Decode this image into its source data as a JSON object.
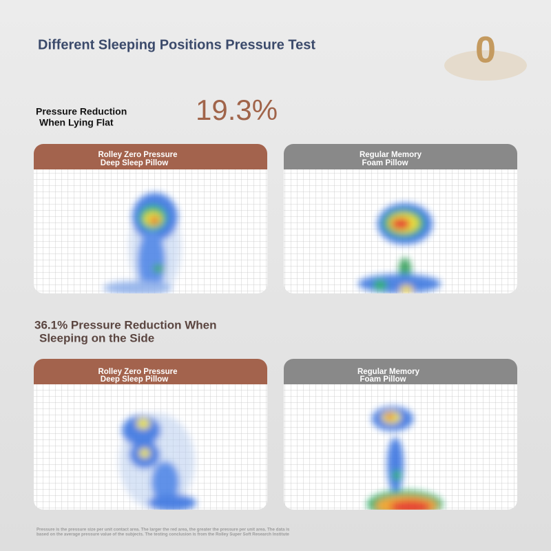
{
  "title": "Different Sleeping Positions Pressure Test",
  "logo": "0",
  "flat": {
    "label_lines": [
      "Pressure Reduction",
      "When Lying Flat"
    ],
    "value": "19.3%",
    "panels": [
      {
        "header_lines": [
          "Rolley Zero Pressure",
          "Deep Sleep Pillow"
        ]
      },
      {
        "header_lines": [
          "Regular Memory",
          "Foam Pillow"
        ]
      }
    ]
  },
  "side": {
    "heading_lines": [
      "36.1% Pressure Reduction When",
      "Sleeping on the Side"
    ],
    "panels": [
      {
        "header_lines": [
          "Rolley Zero Pressure",
          "Deep Sleep Pillow"
        ]
      },
      {
        "header_lines": [
          "Regular Memory",
          "Foam Pillow"
        ]
      }
    ]
  },
  "footnote_lines": [
    "Pressure is the pressure size per unit contact area. The larger the red area, the greater the pressure per unit area. The data is",
    "based on the average pressure value of the subjects. The testing conclusion is from the Rolley Super Soft Research Institute"
  ]
}
